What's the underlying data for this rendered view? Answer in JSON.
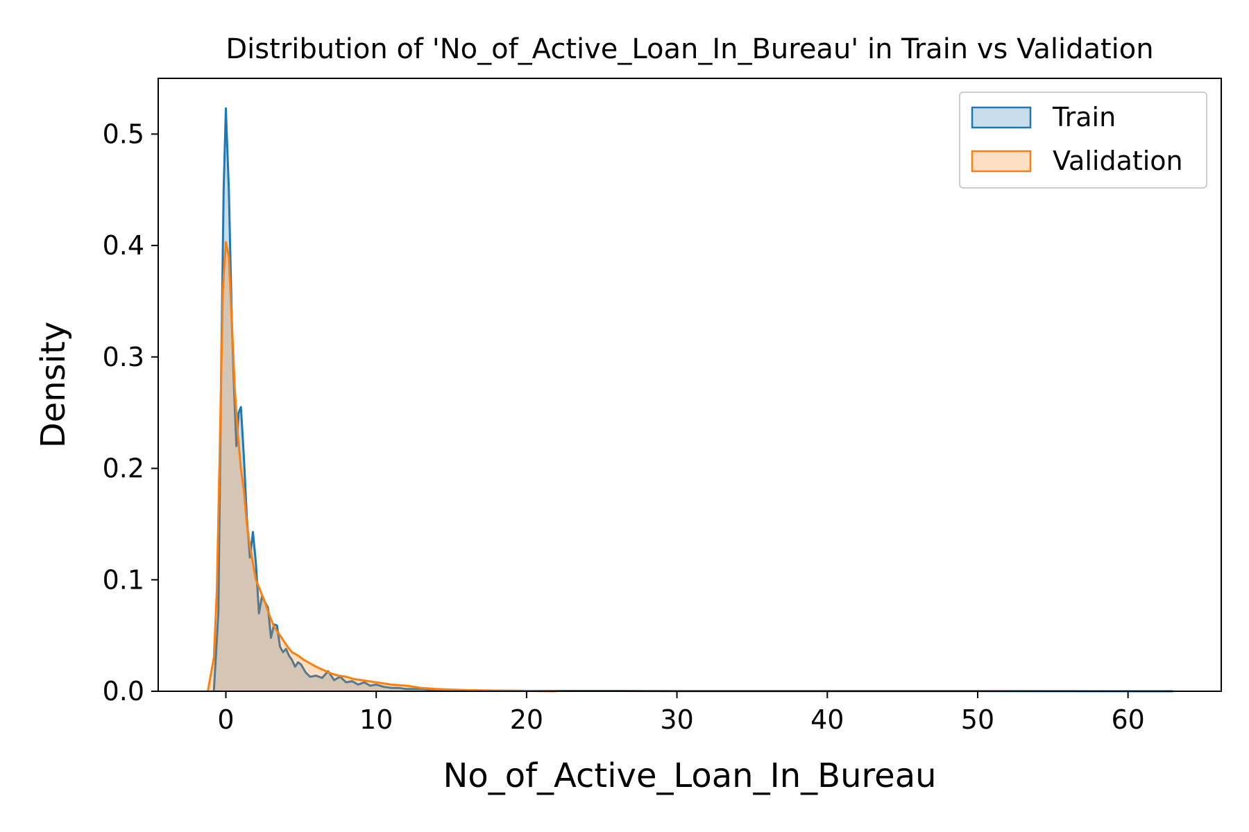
{
  "chart_data": {
    "type": "area",
    "title": "Distribution of 'No_of_Active_Loan_In_Bureau' in Train vs Validation",
    "xlabel": "No_of_Active_Loan_In_Bureau",
    "ylabel": "Density",
    "xlim": [
      -4.5,
      66.2
    ],
    "ylim": [
      0,
      0.55
    ],
    "xticks": [
      0,
      10,
      20,
      30,
      40,
      50,
      60
    ],
    "yticks": [
      0.0,
      0.1,
      0.2,
      0.3,
      0.4,
      0.5
    ],
    "xtick_labels": [
      "0",
      "10",
      "20",
      "30",
      "40",
      "50",
      "60"
    ],
    "ytick_labels": [
      "0.0",
      "0.1",
      "0.2",
      "0.3",
      "0.4",
      "0.5"
    ],
    "grid": false,
    "legend_position": "top-right",
    "series": [
      {
        "name": "Train",
        "color": "#1f77b4",
        "fill": "#1f77b4",
        "x": [
          -0.8,
          -0.5,
          -0.3,
          -0.15,
          0.0,
          0.2,
          0.4,
          0.55,
          0.7,
          0.85,
          1.0,
          1.2,
          1.4,
          1.6,
          1.8,
          2.0,
          2.2,
          2.4,
          2.6,
          2.8,
          3.0,
          3.2,
          3.4,
          3.6,
          3.8,
          4.0,
          4.2,
          4.4,
          4.6,
          4.8,
          5.0,
          5.3,
          5.6,
          6.0,
          6.4,
          6.8,
          7.2,
          7.6,
          8.0,
          8.4,
          8.8,
          9.2,
          9.6,
          10.0,
          10.5,
          11.0,
          11.5,
          12.0,
          13.0,
          14.0,
          15.0,
          17.0,
          20.0,
          25.0,
          30.0,
          40.0,
          50.0,
          63.0
        ],
        "y": [
          0.0,
          0.07,
          0.3,
          0.45,
          0.523,
          0.45,
          0.33,
          0.27,
          0.22,
          0.25,
          0.255,
          0.21,
          0.155,
          0.12,
          0.143,
          0.115,
          0.07,
          0.085,
          0.08,
          0.075,
          0.048,
          0.06,
          0.059,
          0.04,
          0.035,
          0.038,
          0.032,
          0.028,
          0.022,
          0.026,
          0.024,
          0.017,
          0.013,
          0.014,
          0.012,
          0.018,
          0.01,
          0.013,
          0.008,
          0.009,
          0.006,
          0.008,
          0.005,
          0.006,
          0.004,
          0.003,
          0.003,
          0.002,
          0.002,
          0.001,
          0.001,
          0.0007,
          0.0004,
          0.0003,
          0.0002,
          0.0001,
          0.0001,
          0.0
        ]
      },
      {
        "name": "Validation",
        "color": "#ff7f0e",
        "fill": "#ff7f0e",
        "x": [
          -1.2,
          -1.0,
          -0.8,
          -0.6,
          -0.4,
          -0.2,
          0.0,
          0.2,
          0.4,
          0.6,
          0.8,
          1.0,
          1.2,
          1.4,
          1.6,
          1.8,
          2.0,
          2.3,
          2.6,
          2.9,
          3.2,
          3.5,
          3.8,
          4.1,
          4.4,
          4.8,
          5.2,
          5.6,
          6.0,
          6.5,
          7.0,
          7.5,
          8.0,
          8.5,
          9.0,
          9.5,
          10.0,
          10.5,
          11.0,
          12.0,
          13.0,
          14.0,
          16.0,
          18.0,
          20.0,
          22.0
        ],
        "y": [
          0.0,
          0.015,
          0.03,
          0.09,
          0.22,
          0.36,
          0.403,
          0.39,
          0.33,
          0.27,
          0.23,
          0.2,
          0.18,
          0.15,
          0.13,
          0.115,
          0.1,
          0.09,
          0.08,
          0.068,
          0.058,
          0.052,
          0.046,
          0.04,
          0.035,
          0.032,
          0.028,
          0.025,
          0.022,
          0.019,
          0.016,
          0.014,
          0.013,
          0.011,
          0.01,
          0.009,
          0.008,
          0.007,
          0.006,
          0.005,
          0.003,
          0.002,
          0.001,
          0.0006,
          0.0003,
          0.0
        ]
      }
    ]
  }
}
